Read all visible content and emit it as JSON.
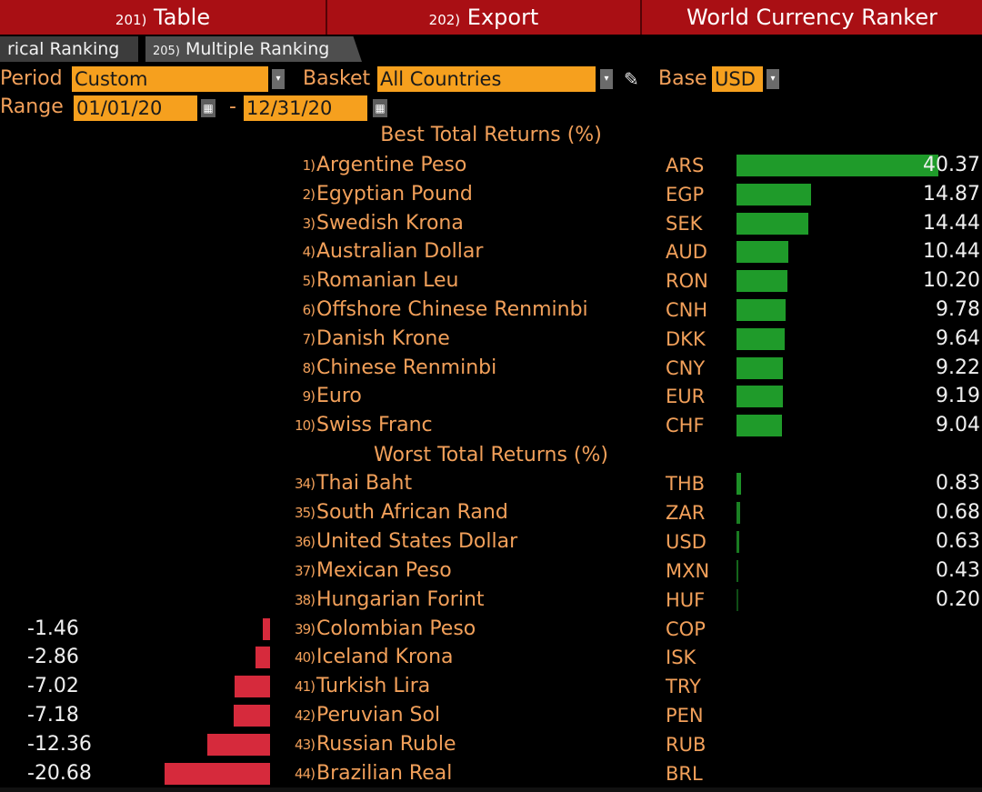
{
  "toolbar": {
    "table": {
      "num": "201)",
      "label": "Table"
    },
    "export": {
      "num": "202)",
      "label": "Export"
    },
    "title": "World Currency Ranker"
  },
  "tabs": {
    "historical": {
      "label": "rical Ranking"
    },
    "multiple": {
      "num": "205)",
      "label": "Multiple Ranking"
    }
  },
  "filters": {
    "period_label": "Period",
    "period_value": "Custom",
    "basket_label": "Basket",
    "basket_value": "All Countries",
    "base_label": "Base",
    "base_value": "USD",
    "range_label": "Range",
    "range_start": "01/01/20",
    "range_dash": "-",
    "range_end": "12/31/20"
  },
  "sections": {
    "best": "Best Total Returns (%)",
    "worst": "Worst Total Returns (%)"
  },
  "colors": {
    "toolbar": "#a90f14",
    "field": "#f6a01e",
    "label": "#f2a05a",
    "positive_bar": "#1f9b2a",
    "negative_bar": "#d62a3c"
  },
  "best": [
    {
      "rank": "1)",
      "name": "Argentine Peso",
      "code": "ARS",
      "value": 40.37
    },
    {
      "rank": "2)",
      "name": "Egyptian Pound",
      "code": "EGP",
      "value": 14.87
    },
    {
      "rank": "3)",
      "name": "Swedish Krona",
      "code": "SEK",
      "value": 14.44
    },
    {
      "rank": "4)",
      "name": "Australian Dollar",
      "code": "AUD",
      "value": 10.44
    },
    {
      "rank": "5)",
      "name": "Romanian Leu",
      "code": "RON",
      "value": 10.2
    },
    {
      "rank": "6)",
      "name": "Offshore Chinese Renminbi",
      "code": "CNH",
      "value": 9.78
    },
    {
      "rank": "7)",
      "name": "Danish Krone",
      "code": "DKK",
      "value": 9.64
    },
    {
      "rank": "8)",
      "name": "Chinese Renminbi",
      "code": "CNY",
      "value": 9.22
    },
    {
      "rank": "9)",
      "name": "Euro",
      "code": "EUR",
      "value": 9.19
    },
    {
      "rank": "10)",
      "name": "Swiss Franc",
      "code": "CHF",
      "value": 9.04
    }
  ],
  "worst": [
    {
      "rank": "34)",
      "name": "Thai Baht",
      "code": "THB",
      "value": 0.83
    },
    {
      "rank": "35)",
      "name": "South African Rand",
      "code": "ZAR",
      "value": 0.68
    },
    {
      "rank": "36)",
      "name": "United States Dollar",
      "code": "USD",
      "value": 0.63
    },
    {
      "rank": "37)",
      "name": "Mexican Peso",
      "code": "MXN",
      "value": 0.43
    },
    {
      "rank": "38)",
      "name": "Hungarian Forint",
      "code": "HUF",
      "value": 0.2
    },
    {
      "rank": "39)",
      "name": "Colombian Peso",
      "code": "COP",
      "value": -1.46
    },
    {
      "rank": "40)",
      "name": "Iceland Krona",
      "code": "ISK",
      "value": -2.86
    },
    {
      "rank": "41)",
      "name": "Turkish Lira",
      "code": "TRY",
      "value": -7.02
    },
    {
      "rank": "42)",
      "name": "Peruvian Sol",
      "code": "PEN",
      "value": -7.18
    },
    {
      "rank": "43)",
      "name": "Russian Ruble",
      "code": "RUB",
      "value": -12.36
    },
    {
      "rank": "44)",
      "name": "Brazilian Real",
      "code": "BRL",
      "value": -20.68
    }
  ]
}
